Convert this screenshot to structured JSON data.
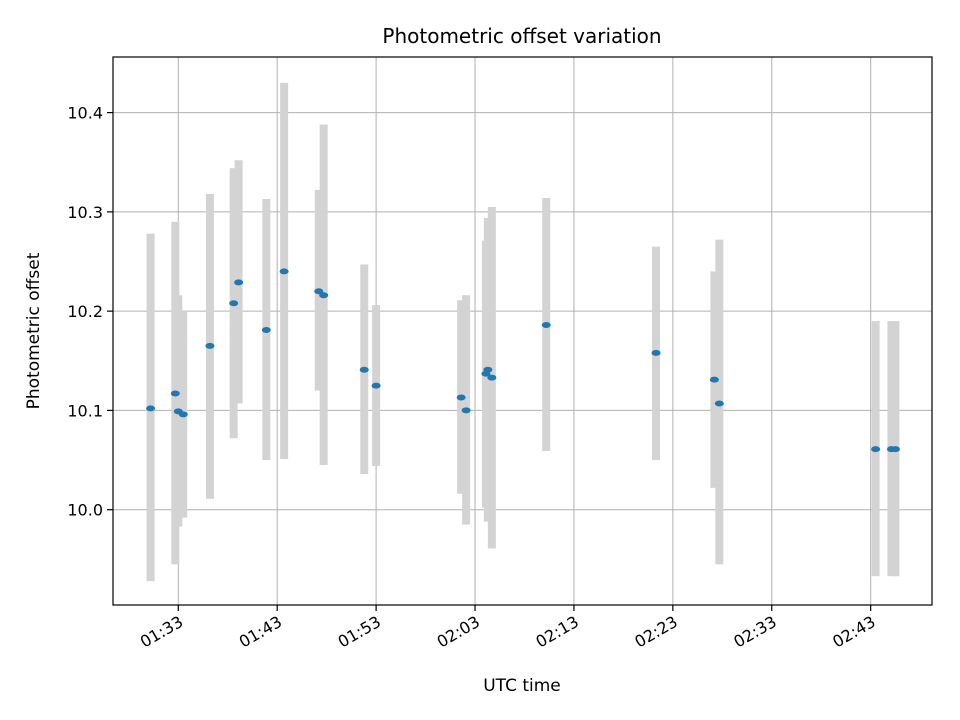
{
  "chart_data": {
    "type": "scatter",
    "title": "Photometric offset variation",
    "xlabel": "UTC time",
    "ylabel": "Photometric offset",
    "grid": true,
    "legend": "none",
    "colors": {
      "marker": "#1f77b4",
      "errorbar": "#d3d3d3",
      "grid": "#b0b0b0",
      "axes": "#000000"
    },
    "xlim": [
      "01:26:24",
      "02:49:12"
    ],
    "ylim": [
      9.904,
      10.456
    ],
    "x_ticks": [
      "01:33",
      "01:43",
      "01:53",
      "02:03",
      "02:13",
      "02:23",
      "02:33",
      "02:43"
    ],
    "y_ticks": [
      "10.0",
      "10.1",
      "10.2",
      "10.3",
      "10.4"
    ],
    "series": [
      {
        "points": [
          {
            "x": "01:30:12",
            "y": 10.102,
            "err_low": 9.928,
            "err_high": 10.278
          },
          {
            "x": "01:32:42",
            "y": 10.117,
            "err_low": 9.945,
            "err_high": 10.29
          },
          {
            "x": "01:33:00",
            "y": 10.099,
            "err_low": 9.983,
            "err_high": 10.216
          },
          {
            "x": "01:33:30",
            "y": 10.096,
            "err_low": 9.992,
            "err_high": 10.2
          },
          {
            "x": "01:36:12",
            "y": 10.165,
            "err_low": 10.011,
            "err_high": 10.318
          },
          {
            "x": "01:38:36",
            "y": 10.208,
            "err_low": 10.072,
            "err_high": 10.344
          },
          {
            "x": "01:39:06",
            "y": 10.229,
            "err_low": 10.107,
            "err_high": 10.352
          },
          {
            "x": "01:41:54",
            "y": 10.181,
            "err_low": 10.05,
            "err_high": 10.313
          },
          {
            "x": "01:43:42",
            "y": 10.24,
            "err_low": 10.051,
            "err_high": 10.43
          },
          {
            "x": "01:47:12",
            "y": 10.22,
            "err_low": 10.12,
            "err_high": 10.322
          },
          {
            "x": "01:47:42",
            "y": 10.216,
            "err_low": 10.045,
            "err_high": 10.388
          },
          {
            "x": "01:51:48",
            "y": 10.141,
            "err_low": 10.036,
            "err_high": 10.247
          },
          {
            "x": "01:53:00",
            "y": 10.125,
            "err_low": 10.044,
            "err_high": 10.206
          },
          {
            "x": "02:01:36",
            "y": 10.113,
            "err_low": 10.016,
            "err_high": 10.211
          },
          {
            "x": "02:02:06",
            "y": 10.1,
            "err_low": 9.985,
            "err_high": 10.216
          },
          {
            "x": "02:04:06",
            "y": 10.137,
            "err_low": 10.002,
            "err_high": 10.271
          },
          {
            "x": "02:04:18",
            "y": 10.141,
            "err_low": 9.988,
            "err_high": 10.294
          },
          {
            "x": "02:04:42",
            "y": 10.133,
            "err_low": 9.961,
            "err_high": 10.305
          },
          {
            "x": "02:10:12",
            "y": 10.186,
            "err_low": 10.059,
            "err_high": 10.314
          },
          {
            "x": "02:21:18",
            "y": 10.158,
            "err_low": 10.05,
            "err_high": 10.265
          },
          {
            "x": "02:27:12",
            "y": 10.131,
            "err_low": 10.022,
            "err_high": 10.24
          },
          {
            "x": "02:27:42",
            "y": 10.107,
            "err_low": 9.945,
            "err_high": 10.272
          },
          {
            "x": "02:43:30",
            "y": 10.061,
            "err_low": 9.933,
            "err_high": 10.19
          },
          {
            "x": "02:45:06",
            "y": 10.061,
            "err_low": 9.933,
            "err_high": 10.19
          },
          {
            "x": "02:45:30",
            "y": 10.061,
            "err_low": 9.933,
            "err_high": 10.19
          }
        ]
      }
    ]
  }
}
